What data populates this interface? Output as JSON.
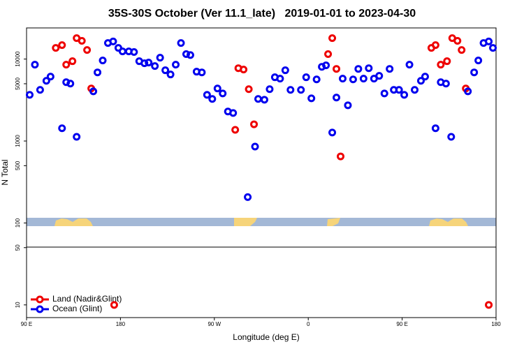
{
  "chart_data": {
    "type": "scatter",
    "title": "35S-30S October (Ver 11.1_late)   2019-01-01 to 2023-04-30",
    "x_label": "Longitude (deg E)",
    "y_label": "N Total",
    "log_y": true,
    "legend": "lower left",
    "xlim": [
      90,
      540
    ],
    "xticks": [
      {
        "value": 90,
        "label": "90 E"
      },
      {
        "value": 180,
        "label": "180"
      },
      {
        "value": 270,
        "label": "90 W"
      },
      {
        "value": 360,
        "label": "0"
      },
      {
        "value": 450,
        "label": "90 E"
      },
      {
        "value": 540,
        "label": "180"
      }
    ],
    "ylim": [
      7,
      24000
    ],
    "yticks": [
      10,
      50,
      100,
      500,
      1000,
      5000,
      10000
    ],
    "series": [
      {
        "name": "Land (Nadir&Glint)",
        "color": "#ee0000",
        "x": [
          118,
          124,
          128,
          134,
          138,
          143,
          148,
          152,
          174,
          290,
          293,
          298,
          303,
          308,
          379,
          383,
          387,
          391,
          478,
          482,
          487,
          493,
          498,
          503,
          507,
          511,
          533
        ],
        "values": [
          13700,
          14800,
          8550,
          9420,
          18000,
          16700,
          12900,
          4380,
          10,
          1370,
          7740,
          7450,
          4290,
          1600,
          11500,
          18000,
          7590,
          649,
          13700,
          14800,
          8550,
          9420,
          18000,
          16700,
          12900,
          4380,
          10
        ]
      },
      {
        "name": "Ocean (Glint)",
        "color": "#0000ee",
        "x": [
          93,
          98,
          103,
          109,
          113,
          124,
          128,
          132,
          138,
          154,
          158,
          163,
          168,
          173,
          178,
          182,
          188,
          193,
          198,
          203,
          207,
          213,
          218,
          223,
          228,
          233,
          238,
          243,
          247,
          253,
          258,
          263,
          268,
          273,
          278,
          283,
          288,
          302,
          309,
          312,
          318,
          323,
          328,
          333,
          338,
          343,
          353,
          358,
          363,
          368,
          373,
          377,
          383,
          387,
          393,
          398,
          403,
          408,
          413,
          418,
          423,
          428,
          433,
          438,
          442,
          447,
          452,
          457,
          462,
          468,
          472,
          482,
          487,
          492,
          497,
          513,
          519,
          523,
          528,
          533,
          537
        ],
        "values": [
          3660,
          8550,
          4210,
          5430,
          6110,
          1430,
          5220,
          5020,
          1125,
          4040,
          6880,
          9610,
          15700,
          16400,
          13700,
          12400,
          12400,
          12200,
          9420,
          8890,
          9060,
          8220,
          10400,
          7300,
          6490,
          8550,
          15700,
          11500,
          11200,
          7020,
          6880,
          3660,
          3260,
          4380,
          3810,
          2290,
          2200,
          207,
          855,
          3260,
          3190,
          4290,
          6000,
          5770,
          7300,
          4210,
          4210,
          6000,
          3320,
          5650,
          8050,
          8380,
          1270,
          3390,
          5770,
          2730,
          5650,
          7590,
          5770,
          7740,
          5770,
          6240,
          3810,
          7590,
          4210,
          4210,
          3660,
          8550,
          4210,
          5430,
          6110,
          1430,
          5220,
          5020,
          1125,
          4040,
          6880,
          9610,
          15700,
          16400,
          13700
        ]
      }
    ]
  }
}
